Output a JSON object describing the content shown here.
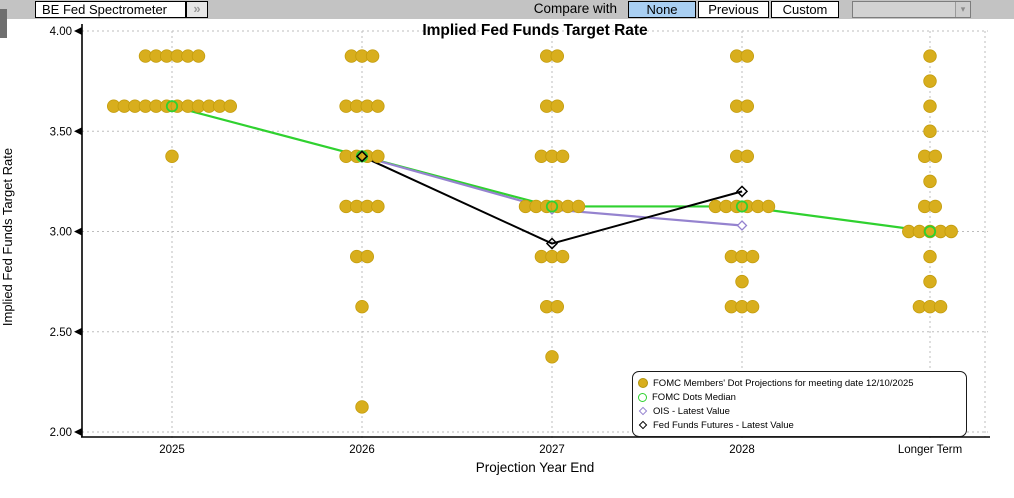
{
  "toolbar": {
    "preset_button": "BE Fed Spectrometer",
    "expand_button": "»",
    "compare_label": "Compare with",
    "compare_options": [
      {
        "label": "None",
        "selected": true
      },
      {
        "label": "Previous",
        "selected": false
      },
      {
        "label": "Custom",
        "selected": false
      }
    ],
    "custom_dropdown_value": "",
    "dropdown_arrow": "▾"
  },
  "colors": {
    "toolbar_bg": "#c3c3c3",
    "selected_option_bg": "#a9cff2",
    "dot": "#d8ae1d",
    "dot_border": "#c39c0c",
    "median": "#2fd12f",
    "ois": "#9583cf",
    "futures": "#000000",
    "grid": "#bdbdbd"
  },
  "chart_data": {
    "type": "scatter",
    "title": "Implied Fed Funds Target Rate",
    "xlabel": "Projection Year End",
    "ylabel": "Implied Fed Funds Target Rate",
    "ylim": [
      2.0,
      4.0
    ],
    "yticks": [
      "4.00",
      "3.50",
      "3.00",
      "2.50",
      "2.00"
    ],
    "ytick_values": [
      4.0,
      3.5,
      3.0,
      2.5,
      2.0
    ],
    "categories": [
      "2025",
      "2026",
      "2027",
      "2028",
      "Longer Term"
    ],
    "grid": true,
    "legend_position": "lower right",
    "dot_counts": [
      {
        "category": "2025",
        "rows": [
          {
            "value": 3.875,
            "count": 6
          },
          {
            "value": 3.625,
            "count": 12
          },
          {
            "value": 3.375,
            "count": 1
          }
        ]
      },
      {
        "category": "2026",
        "rows": [
          {
            "value": 3.875,
            "count": 3
          },
          {
            "value": 3.625,
            "count": 4
          },
          {
            "value": 3.375,
            "count": 4
          },
          {
            "value": 3.125,
            "count": 4
          },
          {
            "value": 2.875,
            "count": 2
          },
          {
            "value": 2.625,
            "count": 1
          },
          {
            "value": 2.125,
            "count": 1
          }
        ]
      },
      {
        "category": "2027",
        "rows": [
          {
            "value": 3.875,
            "count": 2
          },
          {
            "value": 3.625,
            "count": 2
          },
          {
            "value": 3.375,
            "count": 3
          },
          {
            "value": 3.125,
            "count": 6
          },
          {
            "value": 2.875,
            "count": 3
          },
          {
            "value": 2.625,
            "count": 2
          },
          {
            "value": 2.375,
            "count": 1
          }
        ]
      },
      {
        "category": "2028",
        "rows": [
          {
            "value": 3.875,
            "count": 2
          },
          {
            "value": 3.625,
            "count": 2
          },
          {
            "value": 3.375,
            "count": 2
          },
          {
            "value": 3.125,
            "count": 6
          },
          {
            "value": 2.875,
            "count": 3
          },
          {
            "value": 2.75,
            "count": 1
          },
          {
            "value": 2.625,
            "count": 3
          }
        ]
      },
      {
        "category": "Longer Term",
        "rows": [
          {
            "value": 3.875,
            "count": 1
          },
          {
            "value": 3.75,
            "count": 1
          },
          {
            "value": 3.625,
            "count": 1
          },
          {
            "value": 3.5,
            "count": 1
          },
          {
            "value": 3.375,
            "count": 2
          },
          {
            "value": 3.25,
            "count": 1
          },
          {
            "value": 3.125,
            "count": 2
          },
          {
            "value": 3.0,
            "count": 5
          },
          {
            "value": 2.875,
            "count": 1
          },
          {
            "value": 2.75,
            "count": 1
          },
          {
            "value": 2.625,
            "count": 3
          }
        ]
      }
    ],
    "series": [
      {
        "name": "FOMC Dots Median",
        "marker": "open-circle",
        "color_key": "median",
        "points": [
          {
            "category": "2025",
            "value": 3.625
          },
          {
            "category": "2026",
            "value": 3.375
          },
          {
            "category": "2027",
            "value": 3.125
          },
          {
            "category": "2028",
            "value": 3.125
          },
          {
            "category": "Longer Term",
            "value": 3.0
          }
        ]
      },
      {
        "name": "OIS - Latest Value",
        "marker": "open-diamond",
        "color_key": "ois",
        "points": [
          {
            "category": "2026",
            "value": 3.375
          },
          {
            "category": "2027",
            "value": 3.11
          },
          {
            "category": "2028",
            "value": 3.03
          }
        ]
      },
      {
        "name": "Fed Funds Futures - Latest Value",
        "marker": "open-diamond",
        "color_key": "futures",
        "points": [
          {
            "category": "2026",
            "value": 3.375
          },
          {
            "category": "2027",
            "value": 2.94
          },
          {
            "category": "2028",
            "value": 3.2
          }
        ]
      }
    ]
  },
  "legend": {
    "items": [
      {
        "label": "FOMC Members' Dot Projections for meeting date 12/10/2025",
        "marker": "filled-circle",
        "color_key": "dot"
      },
      {
        "label": "FOMC Dots Median",
        "marker": "open-circle",
        "color_key": "median"
      },
      {
        "label": "OIS - Latest Value",
        "marker": "open-diamond",
        "color_key": "ois"
      },
      {
        "label": "Fed Funds Futures - Latest Value",
        "marker": "open-diamond",
        "color_key": "futures"
      }
    ]
  }
}
